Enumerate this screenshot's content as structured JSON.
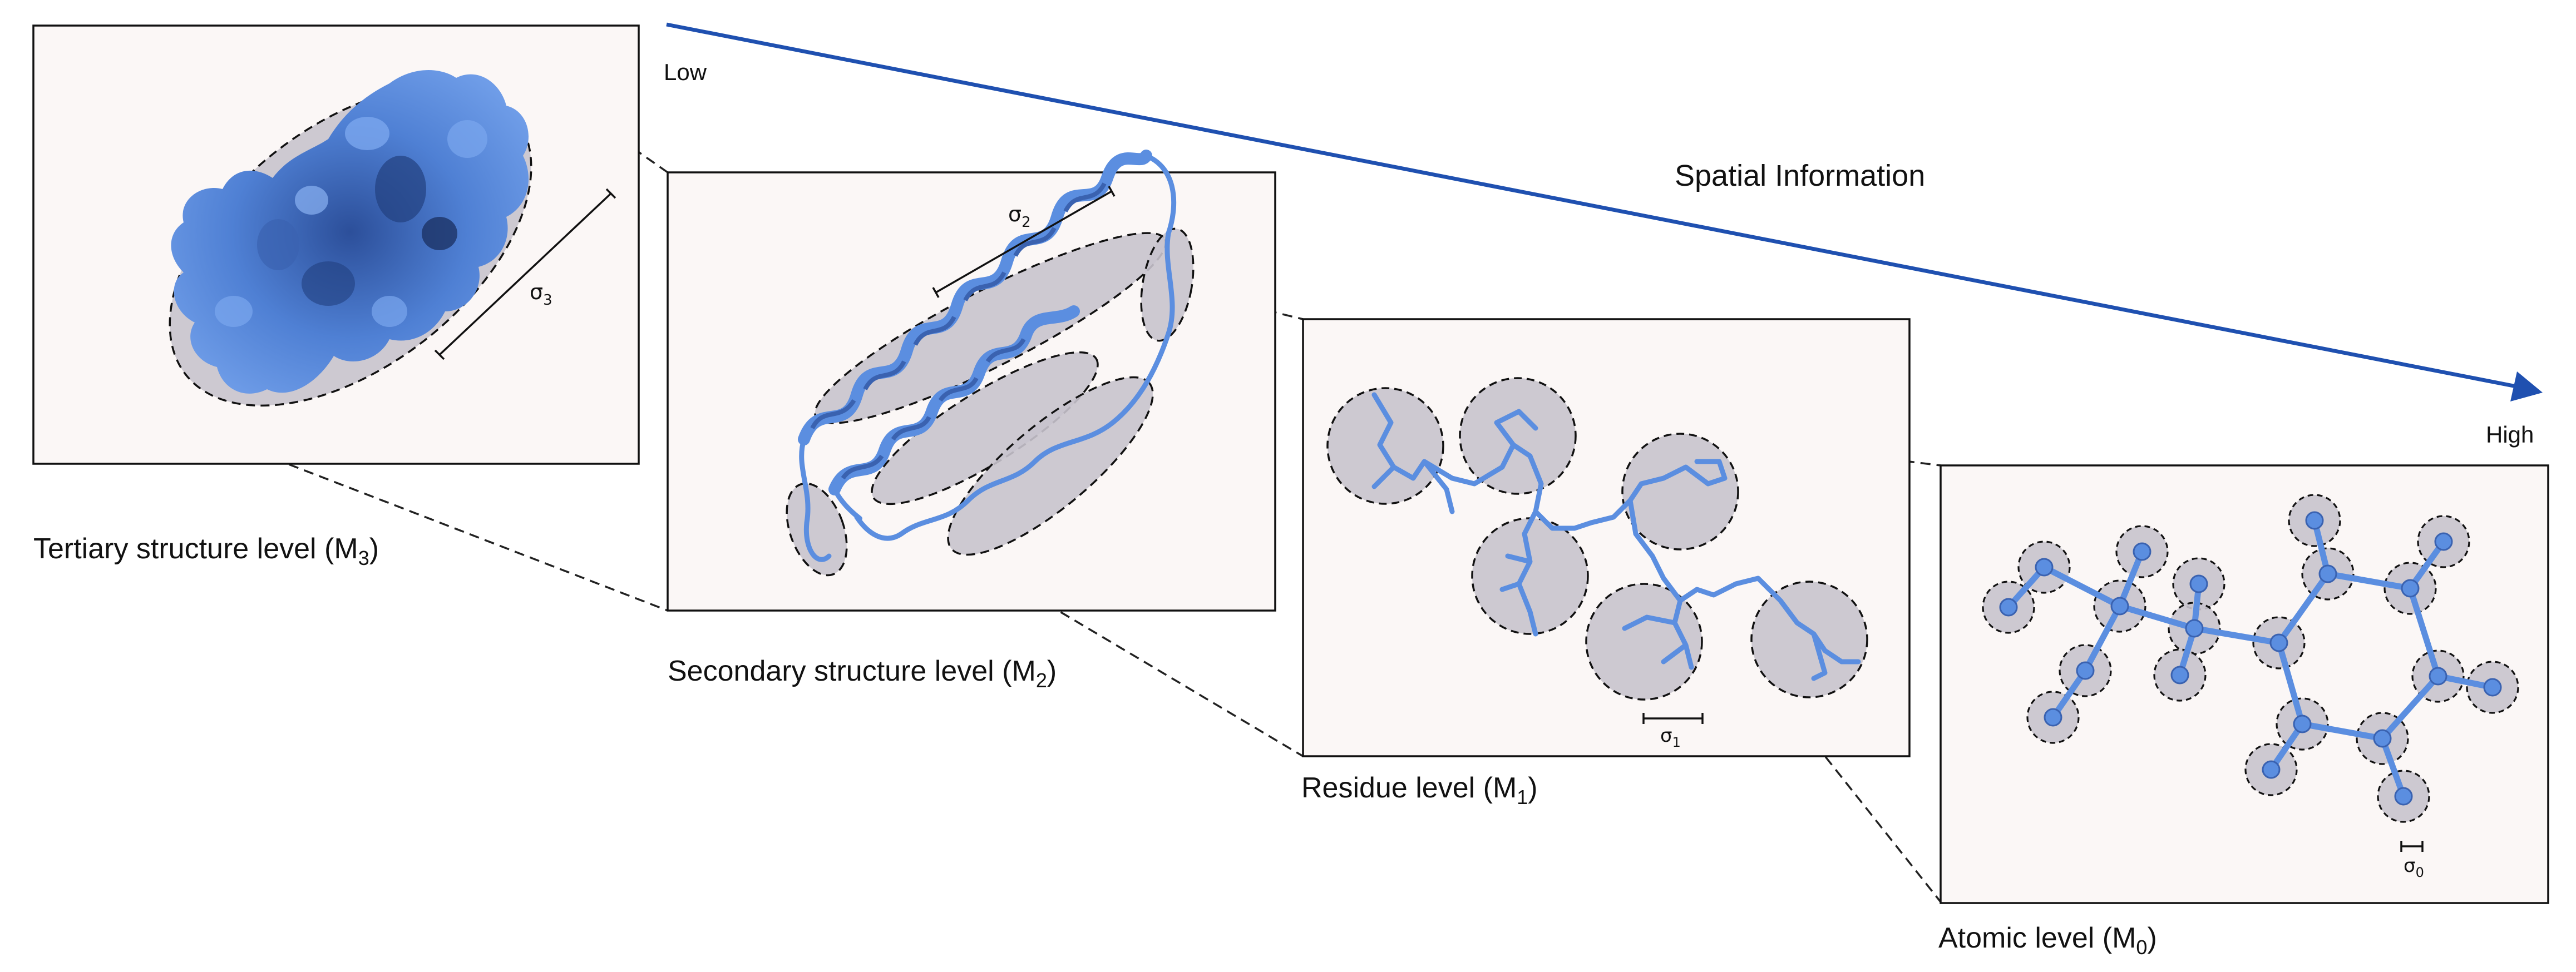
{
  "arrow": {
    "title": "Spatial Information",
    "low": "Low",
    "high": "High"
  },
  "levels": {
    "m3": {
      "label": "Tertiary structure level (M",
      "sub": "3",
      "close": ")",
      "sigma": "σ",
      "sigma_sub": "3"
    },
    "m2": {
      "label": "Secondary structure level (M",
      "sub": "2",
      "close": ")",
      "sigma": "σ",
      "sigma_sub": "2"
    },
    "m1": {
      "label": "Residue level (M",
      "sub": "1",
      "close": ")",
      "sigma": "σ",
      "sigma_sub": "1"
    },
    "m0": {
      "label": "Atomic level (M",
      "sub": "0",
      "close": ")",
      "sigma": "σ",
      "sigma_sub": "0"
    }
  },
  "colors": {
    "protein": "#5b8ee0",
    "protein_dark": "#3a62b0",
    "arrow": "#1f50b0",
    "panel_bg": "#fbf7f6",
    "blob_fill": "#c4bfca"
  }
}
